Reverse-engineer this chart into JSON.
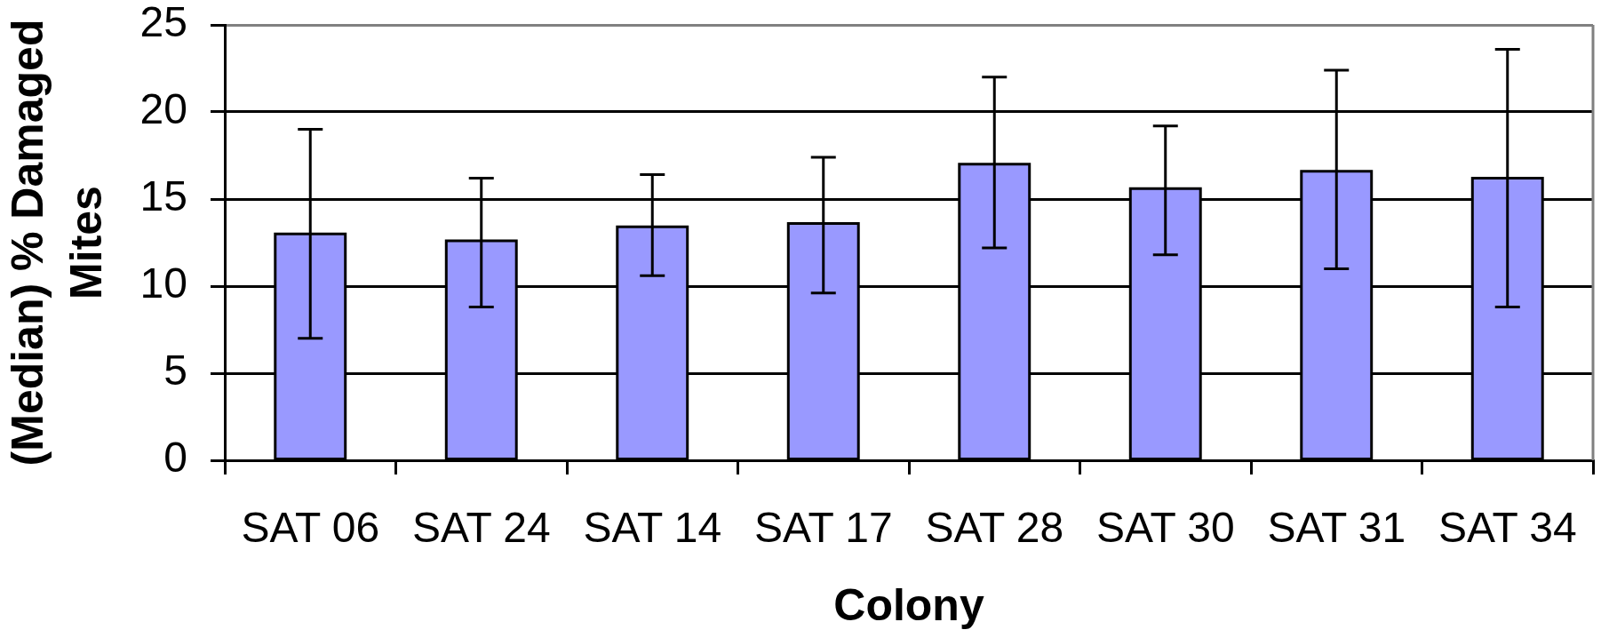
{
  "chart_data": {
    "type": "bar",
    "xlabel": "Colony",
    "ylabel": "(Median) % Damaged Mites",
    "categories": [
      "SAT 06",
      "SAT 24",
      "SAT 14",
      "SAT 17",
      "SAT 28",
      "SAT 30",
      "SAT 31",
      "SAT 34"
    ],
    "values": [
      13.0,
      12.6,
      13.4,
      13.6,
      17.0,
      15.6,
      16.6,
      16.2
    ],
    "color": "#9999ff",
    "errors": [
      [
        7.0,
        19.0
      ],
      [
        8.8,
        16.2
      ],
      [
        10.6,
        16.4
      ],
      [
        9.6,
        17.4
      ],
      [
        12.2,
        22.0
      ],
      [
        11.8,
        19.2
      ],
      [
        11.0,
        22.4
      ],
      [
        8.8,
        23.6
      ]
    ],
    "ylim": [
      0,
      25
    ],
    "yticks": [
      0,
      5,
      10,
      15,
      20,
      25
    ],
    "grid": "y"
  }
}
